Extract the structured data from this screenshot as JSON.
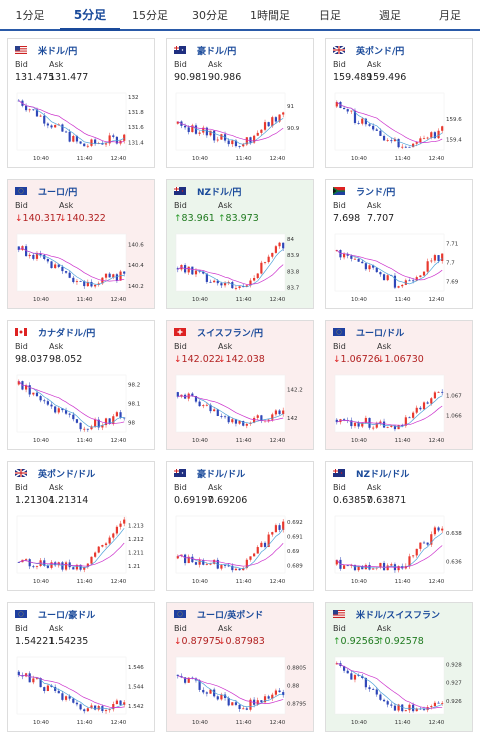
{
  "tabs": [
    {
      "label": "1分足",
      "active": false
    },
    {
      "label": "5分足",
      "active": true
    },
    {
      "label": "15分足",
      "active": false
    },
    {
      "label": "30分足",
      "active": false
    },
    {
      "label": "1時間足",
      "active": false
    },
    {
      "label": "日足",
      "active": false
    },
    {
      "label": "週足",
      "active": false
    },
    {
      "label": "月足",
      "active": false
    }
  ],
  "labels": {
    "bid": "Bid",
    "ask": "Ask"
  },
  "colors": {
    "up_candle": "#e8382e",
    "down_candle": "#2e46b8",
    "ma_short": "#cc33cc",
    "ma_long": "#4fa3d9",
    "card_down_bg": "#fbeeee",
    "card_up_bg": "#ecf5ec"
  },
  "cards": [
    {
      "pair": "米ドル/円",
      "flag": "US",
      "bid": "131.475",
      "ask": "131.477",
      "direction": "none",
      "chart_data": {
        "type": "candlestick",
        "x_ticks": [
          "10:40",
          "11:40",
          "12:40"
        ],
        "y_ticks": [
          "132",
          "131.8",
          "131.6",
          "131.4"
        ],
        "ylim": [
          131.3,
          132.05
        ],
        "start": 131.95,
        "end": 131.47,
        "dip": 131.35,
        "trend": "down"
      }
    },
    {
      "pair": "豪ドル/円",
      "flag": "AU",
      "bid": "90.981",
      "ask": "90.986",
      "direction": "none",
      "chart_data": {
        "type": "candlestick",
        "x_ticks": [
          "10:40",
          "11:40",
          "12:40"
        ],
        "y_ticks": [
          "91",
          "90.9"
        ],
        "ylim": [
          90.8,
          91.06
        ],
        "start": 90.92,
        "end": 90.98,
        "dip": 90.82,
        "trend": "flat"
      }
    },
    {
      "pair": "英ポンド/円",
      "flag": "GB",
      "bid": "159.489",
      "ask": "159.496",
      "direction": "none",
      "chart_data": {
        "type": "candlestick",
        "x_ticks": [
          "10:40",
          "11:40",
          "12:40"
        ],
        "y_ticks": [
          "159.6",
          "159.4"
        ],
        "ylim": [
          159.3,
          159.85
        ],
        "start": 159.72,
        "end": 159.49,
        "dip": 159.33,
        "trend": "down"
      }
    },
    {
      "pair": "ユーロ/円",
      "flag": "EU",
      "bid": "140.317",
      "ask": "140.322",
      "direction": "down",
      "chart_data": {
        "type": "candlestick",
        "x_ticks": [
          "10:40",
          "11:40",
          "12:40"
        ],
        "y_ticks": [
          "140.6",
          "140.4",
          "140.2"
        ],
        "ylim": [
          140.15,
          140.7
        ],
        "start": 140.58,
        "end": 140.32,
        "dip": 140.2,
        "trend": "down"
      }
    },
    {
      "pair": "NZドル/円",
      "flag": "NZ",
      "bid": "83.961",
      "ask": "83.973",
      "direction": "up",
      "chart_data": {
        "type": "candlestick",
        "x_ticks": [
          "10:40",
          "11:40",
          "12:40"
        ],
        "y_ticks": [
          "84",
          "83.9",
          "83.8",
          "83.7"
        ],
        "ylim": [
          83.68,
          84.03
        ],
        "start": 83.82,
        "end": 83.97,
        "dip": 83.7,
        "trend": "up"
      }
    },
    {
      "pair": "ランド/円",
      "flag": "ZA",
      "bid": "7.698",
      "ask": "7.707",
      "direction": "none",
      "chart_data": {
        "type": "candlestick",
        "x_ticks": [
          "10:40",
          "11:40",
          "12:40"
        ],
        "y_ticks": [
          "7.71",
          "7.7",
          "7.69"
        ],
        "ylim": [
          7.685,
          7.715
        ],
        "start": 7.706,
        "end": 7.704,
        "dip": 7.688,
        "trend": "flat"
      }
    },
    {
      "pair": "カナダドル/円",
      "flag": "CA",
      "bid": "98.037",
      "ask": "98.052",
      "direction": "none",
      "chart_data": {
        "type": "candlestick",
        "x_ticks": [
          "10:40",
          "11:40",
          "12:40"
        ],
        "y_ticks": [
          "98.2",
          "98.1",
          "98"
        ],
        "ylim": [
          97.95,
          98.25
        ],
        "start": 98.2,
        "end": 98.04,
        "dip": 97.97,
        "trend": "down"
      }
    },
    {
      "pair": "スイスフラン/円",
      "flag": "CH",
      "bid": "142.022",
      "ask": "142.038",
      "direction": "down",
      "chart_data": {
        "type": "candlestick",
        "x_ticks": [
          "10:40",
          "11:40",
          "12:40"
        ],
        "y_ticks": [
          "142.2",
          "142"
        ],
        "ylim": [
          141.9,
          142.3
        ],
        "start": 142.18,
        "end": 142.03,
        "dip": 141.95,
        "trend": "down"
      }
    },
    {
      "pair": "ユーロ/ドル",
      "flag": "EU",
      "bid": "1.06726",
      "ask": "1.06730",
      "direction": "down",
      "chart_data": {
        "type": "candlestick",
        "x_ticks": [
          "10:40",
          "11:40",
          "12:40"
        ],
        "y_ticks": [
          "1.067",
          "1.066"
        ],
        "ylim": [
          1.0652,
          1.068
        ],
        "start": 1.0658,
        "end": 1.0672,
        "dip": 1.0655,
        "trend": "up"
      }
    },
    {
      "pair": "英ポンド/ドル",
      "flag": "GB",
      "bid": "1.21304",
      "ask": "1.21314",
      "direction": "none",
      "chart_data": {
        "type": "candlestick",
        "x_ticks": [
          "10:40",
          "11:40",
          "12:40"
        ],
        "y_ticks": [
          "1.213",
          "1.212",
          "1.211",
          "1.21"
        ],
        "ylim": [
          1.2095,
          1.2137
        ],
        "start": 1.2103,
        "end": 1.2131,
        "dip": 1.2099,
        "trend": "up"
      }
    },
    {
      "pair": "豪ドル/ドル",
      "flag": "AU",
      "bid": "0.69197",
      "ask": "0.69206",
      "direction": "none",
      "chart_data": {
        "type": "candlestick",
        "x_ticks": [
          "10:40",
          "11:40",
          "12:40"
        ],
        "y_ticks": [
          "0.692",
          "0.691",
          "0.69",
          "0.689"
        ],
        "ylim": [
          0.6885,
          0.6924
        ],
        "start": 0.6895,
        "end": 0.692,
        "dip": 0.6888,
        "trend": "up"
      }
    },
    {
      "pair": "NZドル/ドル",
      "flag": "NZ",
      "bid": "0.63857",
      "ask": "0.63871",
      "direction": "none",
      "chart_data": {
        "type": "candlestick",
        "x_ticks": [
          "10:40",
          "11:40",
          "12:40"
        ],
        "y_ticks": [
          "0.638",
          "0.636"
        ],
        "ylim": [
          0.6352,
          0.6392
        ],
        "start": 0.6358,
        "end": 0.6386,
        "dip": 0.6355,
        "trend": "up"
      }
    },
    {
      "pair": "ユーロ/豪ドル",
      "flag": "EU",
      "bid": "1.54221",
      "ask": "1.54235",
      "direction": "none",
      "chart_data": {
        "type": "candlestick",
        "x_ticks": [
          "10:40",
          "11:40",
          "12:40"
        ],
        "y_ticks": [
          "1.546",
          "1.544",
          "1.542"
        ],
        "ylim": [
          1.5412,
          1.547
        ],
        "start": 1.5455,
        "end": 1.5422,
        "dip": 1.5416,
        "trend": "down"
      }
    },
    {
      "pair": "ユーロ/英ポンド",
      "flag": "EU",
      "bid": "0.87975",
      "ask": "0.87983",
      "direction": "down",
      "chart_data": {
        "type": "candlestick",
        "x_ticks": [
          "10:40",
          "11:40",
          "12:40"
        ],
        "y_ticks": [
          "0.8805",
          "0.88",
          "0.8795"
        ],
        "ylim": [
          0.8792,
          0.8808
        ],
        "start": 0.8803,
        "end": 0.8798,
        "dip": 0.8794,
        "trend": "down"
      }
    },
    {
      "pair": "米ドル/スイスフラン",
      "flag": "US",
      "bid": "0.92563",
      "ask": "0.92578",
      "direction": "up",
      "chart_data": {
        "type": "candlestick",
        "x_ticks": [
          "10:40",
          "11:40",
          "12:40"
        ],
        "y_ticks": [
          "0.928",
          "0.927",
          "0.926"
        ],
        "ylim": [
          0.9253,
          0.9284
        ],
        "start": 0.928,
        "end": 0.9257,
        "dip": 0.9255,
        "trend": "down"
      }
    }
  ]
}
